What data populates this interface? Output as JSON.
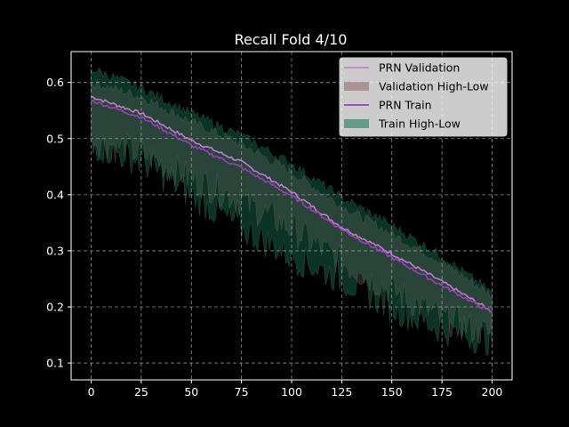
{
  "chart_data": {
    "type": "line",
    "title": "Recall Fold 4/10",
    "xlabel": "",
    "ylabel": "",
    "xlim": [
      -10,
      210
    ],
    "ylim": [
      0.07,
      0.655
    ],
    "xticks": [
      0,
      25,
      50,
      75,
      100,
      125,
      150,
      175,
      200
    ],
    "xtick_labels": [
      "0",
      "25",
      "50",
      "75",
      "100",
      "125",
      "150",
      "175",
      "200"
    ],
    "yticks": [
      0.1,
      0.2,
      0.3,
      0.4,
      0.5,
      0.6
    ],
    "ytick_labels": [
      "0.1",
      "0.2",
      "0.3",
      "0.4",
      "0.5",
      "0.6"
    ],
    "grid": true,
    "legend_position": "top-right",
    "colors": {
      "background": "#000000",
      "foreground": "#ffffff",
      "grid": "#b0b0b0",
      "validation_line": "#c77fd6",
      "validation_band": "#8c5a5a",
      "train_line": "#a23fc0",
      "train_band": "#1f7a5c"
    },
    "x": [
      0,
      25,
      50,
      75,
      100,
      125,
      150,
      175,
      200
    ],
    "series": [
      {
        "name": "PRN Validation",
        "kind": "line",
        "values": [
          0.575,
          0.545,
          0.497,
          0.458,
          0.405,
          0.342,
          0.295,
          0.245,
          0.192
        ]
      },
      {
        "name": "Validation High-Low",
        "kind": "band",
        "high": [
          0.6,
          0.575,
          0.53,
          0.49,
          0.44,
          0.38,
          0.33,
          0.28,
          0.22
        ],
        "low": [
          0.5,
          0.475,
          0.43,
          0.39,
          0.34,
          0.28,
          0.23,
          0.18,
          0.15
        ]
      },
      {
        "name": "PRN Train",
        "kind": "line",
        "values": [
          0.568,
          0.538,
          0.488,
          0.448,
          0.398,
          0.338,
          0.288,
          0.238,
          0.19
        ]
      },
      {
        "name": "Train High-Low",
        "kind": "band",
        "high": [
          0.625,
          0.59,
          0.545,
          0.505,
          0.455,
          0.395,
          0.345,
          0.29,
          0.225
        ],
        "low": [
          0.49,
          0.46,
          0.4,
          0.34,
          0.29,
          0.25,
          0.2,
          0.16,
          0.14
        ]
      }
    ]
  }
}
